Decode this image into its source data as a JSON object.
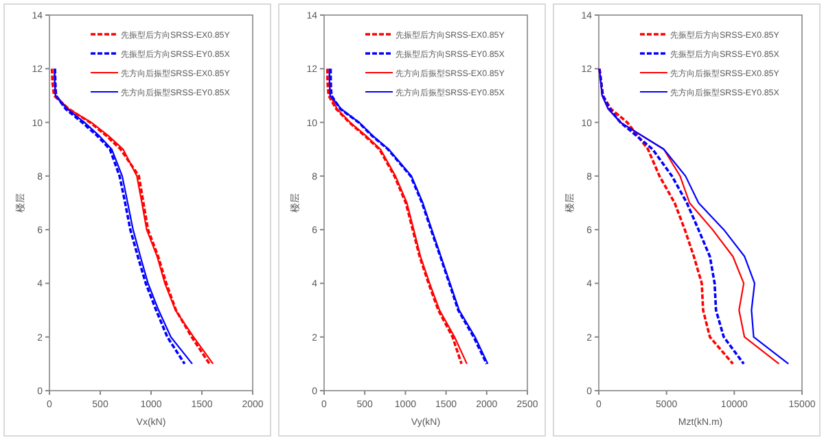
{
  "chart_data": [
    {
      "type": "line",
      "xlabel": "Vx(kN)",
      "ylabel": "楼层",
      "xlim": [
        0,
        2000
      ],
      "xticks": [
        0,
        500,
        1000,
        1500,
        2000
      ],
      "ylim": [
        0,
        14
      ],
      "yticks": [
        0,
        2,
        4,
        6,
        8,
        10,
        12,
        14
      ],
      "legend": "top right",
      "grid": false,
      "series": [
        {
          "name": "先振型后方向SRSS-EX0.85Y",
          "color": "#ff0000",
          "line_style": "dashed",
          "x": [
            25,
            30,
            45,
            190,
            400,
            560,
            700,
            880,
            925,
            970,
            1070,
            1150,
            1245,
            1400,
            1575
          ],
          "values": [
            12,
            11.5,
            11,
            10.5,
            10,
            9.5,
            9,
            8,
            7,
            6,
            5,
            4,
            3,
            2,
            1
          ]
        },
        {
          "name": "先振型后方向SRSS-EY0.85X",
          "color": "#0000ff",
          "line_style": "dashed",
          "x": [
            55,
            58,
            65,
            160,
            322,
            470,
            595,
            690,
            745,
            796,
            870,
            948,
            1050,
            1160,
            1330
          ],
          "values": [
            12,
            11.5,
            11,
            10.5,
            10,
            9.5,
            9,
            8,
            7,
            6,
            5,
            4,
            3,
            2,
            1
          ]
        },
        {
          "name": "先方向后振型SRSS-EX0.85Y",
          "color": "#ff0000",
          "line_style": "solid",
          "x": [
            50,
            52,
            60,
            188,
            412,
            580,
            725,
            860,
            910,
            957,
            1060,
            1136,
            1240,
            1418,
            1610
          ],
          "values": [
            12,
            11.5,
            11,
            10.5,
            10,
            9.5,
            9,
            8,
            7,
            6,
            5,
            4,
            3,
            2,
            1
          ]
        },
        {
          "name": "先方向后振型SRSS-EY0.85X",
          "color": "#0000ff",
          "line_style": "solid",
          "x": [
            50,
            52,
            60,
            175,
            345,
            490,
            613,
            716,
            770,
            823,
            895,
            970,
            1074,
            1195,
            1405
          ],
          "values": [
            12,
            11.5,
            11,
            10.5,
            10,
            9.5,
            9,
            8,
            7,
            6,
            5,
            4,
            3,
            2,
            1
          ]
        }
      ]
    },
    {
      "type": "line",
      "xlabel": "Vy(kN)",
      "ylabel": "楼层",
      "xlim": [
        0,
        2500
      ],
      "xticks": [
        0,
        500,
        1000,
        1500,
        2000,
        2500
      ],
      "ylim": [
        0,
        14
      ],
      "yticks": [
        0,
        2,
        4,
        6,
        8,
        10,
        12,
        14
      ],
      "legend": "top right",
      "grid": false,
      "series": [
        {
          "name": "先振型后方向SRSS-EX0.85Y",
          "color": "#ff0000",
          "line_style": "dashed",
          "x": [
            40,
            42,
            55,
            150,
            310,
            500,
            680,
            865,
            1005,
            1090,
            1175,
            1285,
            1405,
            1580,
            1690
          ],
          "values": [
            12,
            11.5,
            11,
            10.5,
            10,
            9.5,
            9,
            8,
            7,
            6,
            5,
            4,
            3,
            2,
            1
          ]
        },
        {
          "name": "先振型后方向SRSS-EY0.85X",
          "color": "#0000ff",
          "line_style": "dashed",
          "x": [
            80,
            82,
            90,
            200,
            425,
            590,
            785,
            1065,
            1205,
            1315,
            1430,
            1540,
            1650,
            1840,
            2000
          ],
          "values": [
            12,
            11.5,
            11,
            10.5,
            10,
            9.5,
            9,
            8,
            7,
            6,
            5,
            4,
            3,
            2,
            1
          ]
        },
        {
          "name": "先方向后振型SRSS-EX0.85Y",
          "color": "#ff0000",
          "line_style": "solid",
          "x": [
            65,
            67,
            75,
            160,
            320,
            515,
            693,
            878,
            1018,
            1102,
            1186,
            1298,
            1420,
            1605,
            1756
          ],
          "values": [
            12,
            11.5,
            11,
            10.5,
            10,
            9.5,
            9,
            8,
            7,
            6,
            5,
            4,
            3,
            2,
            1
          ]
        },
        {
          "name": "先方向后振型SRSS-EY0.85X",
          "color": "#0000ff",
          "line_style": "solid",
          "x": [
            65,
            67,
            75,
            210,
            430,
            598,
            794,
            1074,
            1214,
            1325,
            1437,
            1549,
            1661,
            1857,
            2013
          ],
          "values": [
            12,
            11.5,
            11,
            10.5,
            10,
            9.5,
            9,
            8,
            7,
            6,
            5,
            4,
            3,
            2,
            1
          ]
        }
      ]
    },
    {
      "type": "line",
      "xlabel": "Mzt(kN.m)",
      "ylabel": "楼层",
      "xlim": [
        0,
        15000
      ],
      "xticks": [
        0,
        5000,
        10000,
        15000
      ],
      "ylim": [
        0,
        14
      ],
      "yticks": [
        0,
        2,
        4,
        6,
        8,
        10,
        12,
        14
      ],
      "legend": "top right",
      "grid": false,
      "series": [
        {
          "name": "先振型后方向SRSS-EX0.85Y",
          "color": "#ff0000",
          "line_style": "dashed",
          "x": [
            50,
            300,
            900,
            2100,
            3630,
            4480,
            5600,
            6350,
            7020,
            7600,
            7700,
            8200,
            9900
          ],
          "values": [
            12,
            11,
            10.5,
            10,
            9,
            8,
            7,
            6,
            5,
            4,
            3,
            2,
            1
          ]
        },
        {
          "name": "先振型后方向SRSS-EY0.85X",
          "color": "#0000ff",
          "line_style": "dashed",
          "x": [
            50,
            300,
            800,
            1600,
            3970,
            5400,
            6500,
            7360,
            8200,
            8550,
            8650,
            9225,
            10700
          ],
          "values": [
            12,
            11,
            10.5,
            10,
            9,
            8,
            7,
            6,
            5,
            4,
            3,
            2,
            1
          ]
        },
        {
          "name": "先方向后振型SRSS-EX0.85Y",
          "color": "#ff0000",
          "line_style": "solid",
          "x": [
            50,
            250,
            700,
            1600,
            4800,
            6000,
            6700,
            8400,
            9900,
            10700,
            10350,
            10750,
            13300
          ],
          "values": [
            12,
            11,
            10.5,
            10,
            9,
            8,
            7,
            6,
            5,
            4,
            3,
            2,
            1
          ]
        },
        {
          "name": "先方向后振型SRSS-EY0.85X",
          "color": "#0000ff",
          "line_style": "solid",
          "x": [
            50,
            250,
            700,
            1600,
            4800,
            6400,
            7360,
            9230,
            10760,
            11500,
            11270,
            11430,
            14000
          ],
          "values": [
            12,
            11,
            10.5,
            10,
            9,
            8,
            7,
            6,
            5,
            4,
            3,
            2,
            1
          ]
        }
      ]
    }
  ]
}
